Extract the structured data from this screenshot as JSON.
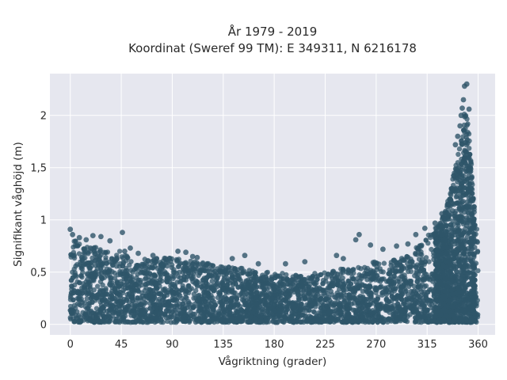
{
  "chart_data": {
    "type": "scatter",
    "title_lines": [
      "År 1979 - 2019",
      "Koordinat (Sweref 99 TM): E 349311, N 6216178"
    ],
    "xlabel": "Vågriktning (grader)",
    "ylabel": "Signifikant våghöjd (m)",
    "xlim": [
      -18,
      375
    ],
    "ylim": [
      -0.1,
      2.4
    ],
    "x_ticks": [
      0,
      45,
      90,
      135,
      180,
      225,
      270,
      315,
      360
    ],
    "x_tick_labels": [
      "0",
      "45",
      "90",
      "135",
      "180",
      "225",
      "270",
      "315",
      "360"
    ],
    "y_ticks": [
      0,
      0.5,
      1,
      1.5,
      2
    ],
    "y_tick_labels": [
      "0",
      "0,5",
      "1",
      "1,5",
      "2"
    ],
    "grid": true,
    "marker_color": "#2f5569",
    "plot_bg": "#e6e7ef",
    "grid_color": "#ffffff",
    "upper_envelope": {
      "x": [
        0,
        10,
        30,
        45,
        60,
        90,
        105,
        135,
        180,
        200,
        225,
        250,
        270,
        290,
        300,
        310,
        320,
        330,
        335,
        340,
        345,
        348,
        352,
        356,
        360
      ],
      "y": [
        0.8,
        0.8,
        0.7,
        0.7,
        0.62,
        0.64,
        0.62,
        0.56,
        0.5,
        0.47,
        0.5,
        0.56,
        0.6,
        0.62,
        0.68,
        0.78,
        0.9,
        1.05,
        1.25,
        1.55,
        1.75,
        2.05,
        1.9,
        1.2,
        0.85
      ]
    },
    "lower_envelope": {
      "x": [
        0,
        360
      ],
      "y": [
        0.02,
        0.02
      ]
    },
    "highlighted_points": {
      "x": [
        0,
        2,
        8,
        14,
        20,
        27,
        35,
        46,
        48,
        53,
        60,
        73,
        84,
        95,
        102,
        108,
        112,
        143,
        154,
        166,
        190,
        207,
        235,
        241,
        252,
        255,
        265,
        276,
        288,
        298,
        305,
        313,
        322,
        328,
        333,
        337,
        340,
        342,
        344,
        345,
        346,
        347,
        348,
        350,
        352,
        354
      ],
      "y": [
        0.91,
        0.86,
        0.83,
        0.81,
        0.85,
        0.84,
        0.8,
        0.88,
        0.7,
        0.73,
        0.68,
        0.66,
        0.63,
        0.7,
        0.69,
        0.65,
        0.64,
        0.63,
        0.66,
        0.58,
        0.58,
        0.6,
        0.66,
        0.63,
        0.81,
        0.86,
        0.76,
        0.72,
        0.75,
        0.77,
        0.86,
        0.92,
        0.97,
        1.06,
        1.15,
        1.3,
        1.72,
        1.8,
        1.9,
        2.0,
        2.07,
        2.15,
        2.28,
        2.3,
        2.06,
        1.4
      ]
    }
  }
}
